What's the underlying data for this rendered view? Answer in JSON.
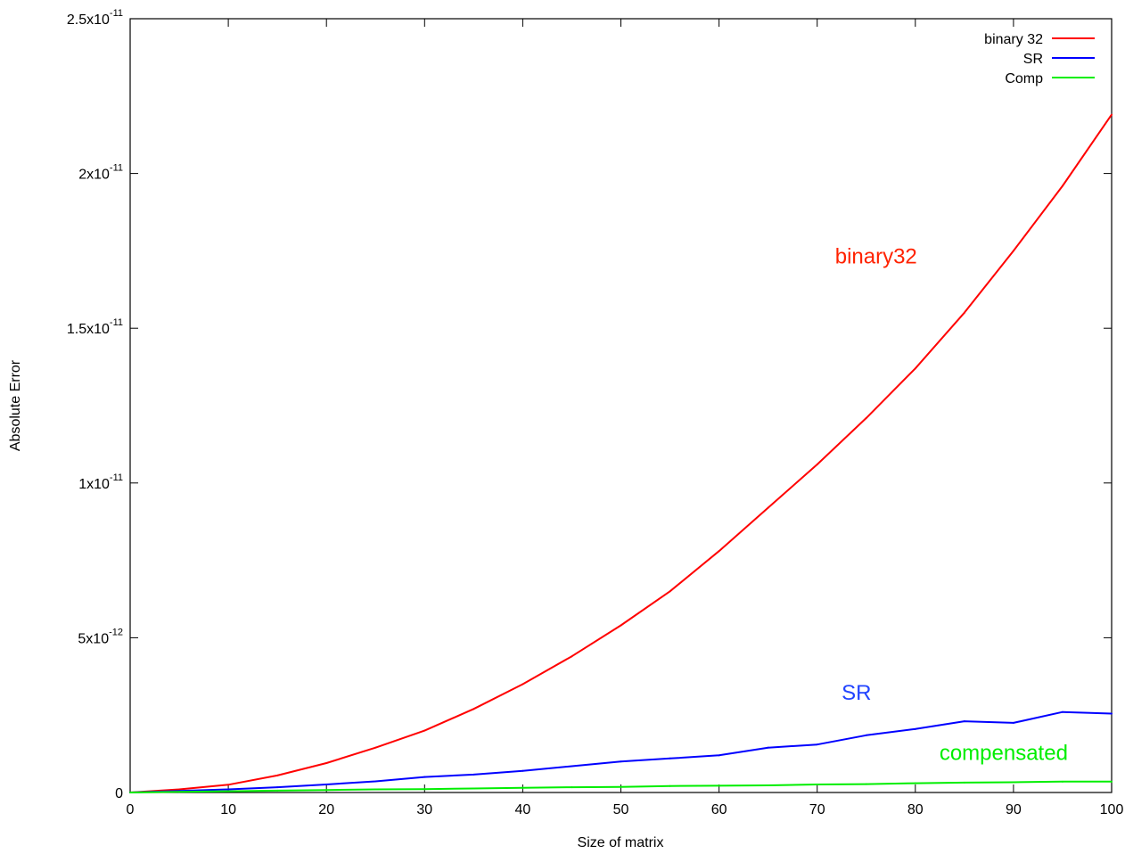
{
  "chart_data": {
    "type": "line",
    "title": "",
    "xlabel": "Size of matrix",
    "ylabel": "Absolute Error",
    "xlim": [
      0,
      100
    ],
    "ylim": [
      0,
      2.5e-11
    ],
    "x_ticks": [
      0,
      10,
      20,
      30,
      40,
      50,
      60,
      70,
      80,
      90,
      100
    ],
    "y_ticks": [
      {
        "value": 0,
        "mantissa": "0",
        "exponent": ""
      },
      {
        "value": 5e-12,
        "mantissa": "5x10",
        "exponent": "-12"
      },
      {
        "value": 1e-11,
        "mantissa": "1x10",
        "exponent": "-11"
      },
      {
        "value": 1.5e-11,
        "mantissa": "1.5x10",
        "exponent": "-11"
      },
      {
        "value": 2e-11,
        "mantissa": "2x10",
        "exponent": "-11"
      },
      {
        "value": 2.5e-11,
        "mantissa": "2.5x10",
        "exponent": "-11"
      }
    ],
    "grid": false,
    "legend_position": "top-right",
    "x": [
      0,
      5,
      10,
      15,
      20,
      25,
      30,
      35,
      40,
      45,
      50,
      55,
      60,
      65,
      70,
      75,
      80,
      85,
      90,
      95,
      100
    ],
    "series": [
      {
        "name": "binary 32",
        "color": "#ff0000",
        "values": [
          0,
          1e-13,
          2.5e-13,
          5.5e-13,
          9.5e-13,
          1.45e-12,
          2e-12,
          2.7e-12,
          3.5e-12,
          4.4e-12,
          5.4e-12,
          6.5e-12,
          7.8e-12,
          9.2e-12,
          1.06e-11,
          1.21e-11,
          1.37e-11,
          1.55e-11,
          1.75e-11,
          1.96e-11,
          2.19e-11
        ]
      },
      {
        "name": "SR",
        "color": "#0000ff",
        "values": [
          0,
          5e-14,
          1e-13,
          1.7e-13,
          2.6e-13,
          3.6e-13,
          5e-13,
          5.8e-13,
          7e-13,
          8.5e-13,
          1e-12,
          1.1e-12,
          1.2e-12,
          1.45e-12,
          1.55e-12,
          1.85e-12,
          2.05e-12,
          2.3e-12,
          2.25e-12,
          2.6e-12,
          2.55e-12
        ]
      },
      {
        "name": "Comp",
        "color": "#00ee00",
        "values": [
          0,
          2e-14,
          4e-14,
          6e-14,
          8e-14,
          1e-13,
          1.1e-13,
          1.3e-13,
          1.5e-13,
          1.7e-13,
          1.8e-13,
          2.1e-13,
          2.2e-13,
          2.3e-13,
          2.6e-13,
          2.7e-13,
          3e-13,
          3.2e-13,
          3.3e-13,
          3.5e-13,
          3.5e-13
        ]
      }
    ],
    "annotations": [
      {
        "text": "binary32",
        "x": 76,
        "y": 1.71e-11,
        "color": "#ff2200"
      },
      {
        "text": "SR",
        "x": 74,
        "y": 3e-12,
        "color": "#2244ff"
      },
      {
        "text": "compensated",
        "x": 89,
        "y": 1.05e-12,
        "color": "#00ee00"
      }
    ]
  }
}
